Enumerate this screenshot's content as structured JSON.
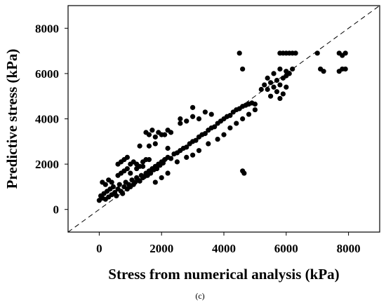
{
  "chart_data": {
    "type": "scatter",
    "title": "",
    "xlabel": "Stress from numerical analysis (kPa)",
    "ylabel": "Predictive stress (kPa)",
    "caption": "(c)",
    "xlim": [
      -1000,
      9000
    ],
    "ylim": [
      -1000,
      9000
    ],
    "xticks": [
      0,
      2000,
      4000,
      6000,
      8000
    ],
    "yticks": [
      0,
      2000,
      4000,
      6000,
      8000
    ],
    "grid": false,
    "marker_color": "#000000",
    "reference_line": {
      "style": "dashed",
      "from": [
        -1000,
        -1000
      ],
      "to": [
        9000,
        9000
      ]
    },
    "series": [
      {
        "points": [
          [
            0,
            400
          ],
          [
            50,
            600
          ],
          [
            100,
            500
          ],
          [
            150,
            700
          ],
          [
            200,
            450
          ],
          [
            250,
            800
          ],
          [
            300,
            550
          ],
          [
            350,
            900
          ],
          [
            400,
            650
          ],
          [
            450,
            1000
          ],
          [
            500,
            750
          ],
          [
            550,
            600
          ],
          [
            600,
            900
          ],
          [
            650,
            1100
          ],
          [
            700,
            800
          ],
          [
            750,
            700
          ],
          [
            800,
            1000
          ],
          [
            850,
            1200
          ],
          [
            900,
            900
          ],
          [
            950,
            1100
          ],
          [
            1000,
            1000
          ],
          [
            1050,
            1300
          ],
          [
            1100,
            1100
          ],
          [
            1150,
            1200
          ],
          [
            1200,
            1400
          ],
          [
            1250,
            1300
          ],
          [
            1300,
            1250
          ],
          [
            1350,
            1500
          ],
          [
            1400,
            1400
          ],
          [
            1450,
            1450
          ],
          [
            1500,
            1600
          ],
          [
            1550,
            1500
          ],
          [
            1600,
            1700
          ],
          [
            1650,
            1600
          ],
          [
            1700,
            1800
          ],
          [
            1750,
            1750
          ],
          [
            1800,
            1900
          ],
          [
            1850,
            1800
          ],
          [
            1900,
            2000
          ],
          [
            1950,
            1950
          ],
          [
            2000,
            2100
          ],
          [
            2050,
            2050
          ],
          [
            2100,
            2200
          ],
          [
            2200,
            2300
          ],
          [
            2300,
            2250
          ],
          [
            2400,
            2450
          ],
          [
            2500,
            2500
          ],
          [
            2600,
            2600
          ],
          [
            2700,
            2700
          ],
          [
            2800,
            2750
          ],
          [
            2900,
            2900
          ],
          [
            3000,
            3000
          ],
          [
            3100,
            3050
          ],
          [
            3200,
            3200
          ],
          [
            3300,
            3300
          ],
          [
            3400,
            3350
          ],
          [
            3500,
            3500
          ],
          [
            3600,
            3600
          ],
          [
            3700,
            3650
          ],
          [
            3800,
            3800
          ],
          [
            3900,
            3900
          ],
          [
            4000,
            4000
          ],
          [
            4100,
            4100
          ],
          [
            4200,
            4150
          ],
          [
            4300,
            4300
          ],
          [
            4400,
            4400
          ],
          [
            4500,
            4450
          ],
          [
            4600,
            4550
          ],
          [
            4700,
            4600
          ],
          [
            4800,
            4650
          ],
          [
            4900,
            4700
          ],
          [
            5000,
            4650
          ],
          [
            100,
            1200
          ],
          [
            200,
            1100
          ],
          [
            300,
            1300
          ],
          [
            400,
            1200
          ],
          [
            600,
            1500
          ],
          [
            700,
            1600
          ],
          [
            800,
            1700
          ],
          [
            900,
            1800
          ],
          [
            600,
            2000
          ],
          [
            700,
            2100
          ],
          [
            800,
            2200
          ],
          [
            900,
            2300
          ],
          [
            1000,
            2000
          ],
          [
            1100,
            2100
          ],
          [
            1200,
            2000
          ],
          [
            1300,
            1900
          ],
          [
            1400,
            2100
          ],
          [
            1500,
            2200
          ],
          [
            1000,
            1600
          ],
          [
            1200,
            1800
          ],
          [
            1400,
            1900
          ],
          [
            1600,
            2200
          ],
          [
            1500,
            3400
          ],
          [
            1600,
            3300
          ],
          [
            1700,
            3500
          ],
          [
            1800,
            3200
          ],
          [
            1900,
            3400
          ],
          [
            2000,
            3300
          ],
          [
            2100,
            3300
          ],
          [
            2200,
            3500
          ],
          [
            2300,
            3400
          ],
          [
            1300,
            2800
          ],
          [
            1600,
            2800
          ],
          [
            1800,
            2900
          ],
          [
            2200,
            2700
          ],
          [
            2600,
            3800
          ],
          [
            2800,
            3900
          ],
          [
            3000,
            4100
          ],
          [
            3200,
            4000
          ],
          [
            3400,
            4300
          ],
          [
            3600,
            4200
          ],
          [
            2600,
            4000
          ],
          [
            3000,
            4500
          ],
          [
            1800,
            1200
          ],
          [
            2000,
            1400
          ],
          [
            2200,
            1600
          ],
          [
            2500,
            2100
          ],
          [
            2800,
            2300
          ],
          [
            3000,
            2400
          ],
          [
            3200,
            2600
          ],
          [
            3500,
            2900
          ],
          [
            3800,
            3100
          ],
          [
            4000,
            3300
          ],
          [
            4200,
            3600
          ],
          [
            4400,
            3800
          ],
          [
            4600,
            4000
          ],
          [
            4800,
            4200
          ],
          [
            5000,
            4400
          ],
          [
            4600,
            1700
          ],
          [
            4650,
            1600
          ],
          [
            4500,
            6900
          ],
          [
            4600,
            6200
          ],
          [
            5200,
            5300
          ],
          [
            5300,
            5500
          ],
          [
            5400,
            5300
          ],
          [
            5500,
            5600
          ],
          [
            5600,
            5400
          ],
          [
            5700,
            5700
          ],
          [
            5800,
            5500
          ],
          [
            5900,
            5800
          ],
          [
            6000,
            5900
          ],
          [
            6100,
            6000
          ],
          [
            5500,
            5000
          ],
          [
            5700,
            5200
          ],
          [
            5900,
            5100
          ],
          [
            5800,
            4900
          ],
          [
            6000,
            5400
          ],
          [
            5400,
            5800
          ],
          [
            5600,
            6000
          ],
          [
            5800,
            6200
          ],
          [
            6000,
            6100
          ],
          [
            6200,
            6200
          ],
          [
            5800,
            6900
          ],
          [
            5900,
            6900
          ],
          [
            6000,
            6900
          ],
          [
            6100,
            6900
          ],
          [
            6200,
            6900
          ],
          [
            6300,
            6900
          ],
          [
            7000,
            6900
          ],
          [
            7100,
            6200
          ],
          [
            7200,
            6100
          ],
          [
            7700,
            6900
          ],
          [
            7800,
            6800
          ],
          [
            7900,
            6900
          ],
          [
            7700,
            6100
          ],
          [
            7800,
            6200
          ],
          [
            7900,
            6200
          ]
        ]
      }
    ]
  }
}
